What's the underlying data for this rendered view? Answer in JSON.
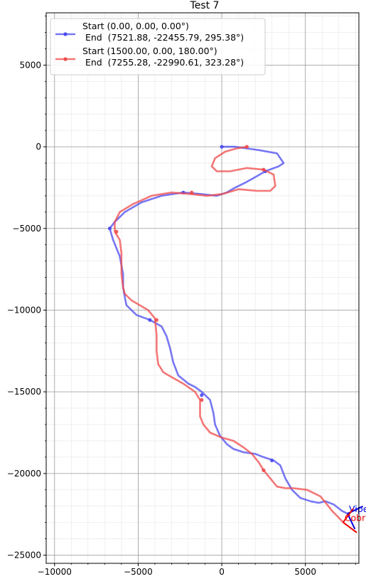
{
  "chart_data": {
    "type": "line",
    "title": "Test 7",
    "xlabel": "",
    "ylabel": "",
    "xlim": [
      -10500,
      8200
    ],
    "ylim": [
      -25500,
      8200
    ],
    "xticks": [
      -10000,
      -5000,
      0,
      5000
    ],
    "yticks": [
      5000,
      0,
      -5000,
      -10000,
      -15000,
      -20000,
      -25000
    ],
    "xtick_labels": [
      "−10000",
      "−5000",
      "0",
      "5000"
    ],
    "ytick_labels": [
      "5000",
      "0",
      "−5000",
      "−10000",
      "−15000",
      "−20000",
      "−25000"
    ],
    "grid": true,
    "legend_position": "upper-left",
    "series": [
      {
        "name": "Start (0.00, 0.00, 0.00°)",
        "name_line2": " End  (7521.88, -22455.79, 295.38°)",
        "color": "#4a4af0",
        "x": [
          0,
          800,
          2200,
          3300,
          3700,
          3400,
          2600,
          2100,
          1400,
          800,
          300,
          -300,
          -1200,
          -2300,
          -3600,
          -4800,
          -5800,
          -6400,
          -6700,
          -6500,
          -6100,
          -5900,
          -5900,
          -5800,
          -5700,
          -5100,
          -4300,
          -3600,
          -3300,
          -3100,
          -2900,
          -2600,
          -2000,
          -1600,
          -1200,
          -1000,
          -700,
          -500,
          -400,
          -100,
          300,
          700,
          1300,
          2000,
          2500,
          2800,
          3100,
          3500,
          3800,
          4200,
          4700,
          5300,
          5800,
          6200,
          6700,
          7200,
          7521
        ],
        "y": [
          0,
          0,
          -200,
          -400,
          -1000,
          -1200,
          -1500,
          -1800,
          -2200,
          -2500,
          -2800,
          -3000,
          -2900,
          -2800,
          -3000,
          -3400,
          -4000,
          -4600,
          -5000,
          -5700,
          -6700,
          -7800,
          -8600,
          -9200,
          -9700,
          -10300,
          -10600,
          -11000,
          -11600,
          -12300,
          -13200,
          -14000,
          -14500,
          -14700,
          -15000,
          -15200,
          -15500,
          -16300,
          -17000,
          -17700,
          -18200,
          -18500,
          -18700,
          -18800,
          -19000,
          -19100,
          -19200,
          -19500,
          -20300,
          -21000,
          -21500,
          -21700,
          -21800,
          -21700,
          -21900,
          -22300,
          -22455
        ],
        "markers_x": [
          0,
          2600,
          -2300,
          -6700,
          -4300,
          -1200,
          3000
        ],
        "markers_y": [
          0,
          -1500,
          -2800,
          -5000,
          -10600,
          -15200,
          -19200
        ]
      },
      {
        "name": "Start (1500.00, 0.00, 180.00°)",
        "name_line2": " End  (7255.28, -22990.61, 323.28°)",
        "color": "#f04a4a",
        "x": [
          1500,
          900,
          200,
          -400,
          -600,
          -300,
          500,
          1500,
          2500,
          3100,
          3200,
          2900,
          2100,
          1000,
          0,
          -900,
          -1800,
          -3000,
          -4200,
          -5300,
          -6100,
          -6400,
          -6400,
          -6100,
          -6000,
          -6000,
          -5900,
          -5800,
          -5400,
          -4900,
          -4400,
          -4000,
          -3900,
          -3900,
          -3800,
          -3500,
          -3000,
          -2300,
          -1600,
          -1300,
          -1300,
          -1100,
          -700,
          0,
          700,
          1300,
          1800,
          2200,
          2500,
          2900,
          3300,
          3800,
          4300,
          5100,
          5900,
          6300,
          6600,
          6900,
          7255
        ],
        "y": [
          0,
          -100,
          -300,
          -700,
          -1200,
          -1500,
          -1500,
          -1300,
          -1400,
          -1700,
          -2400,
          -2700,
          -2700,
          -2600,
          -2900,
          -3000,
          -2900,
          -2800,
          -3000,
          -3500,
          -4000,
          -4600,
          -5200,
          -5700,
          -6500,
          -7800,
          -8600,
          -9000,
          -9400,
          -9700,
          -10000,
          -10500,
          -11500,
          -12500,
          -13300,
          -13800,
          -14100,
          -14500,
          -15000,
          -15500,
          -16500,
          -17000,
          -17500,
          -17800,
          -18000,
          -18400,
          -18800,
          -19300,
          -19800,
          -20300,
          -20800,
          -20900,
          -20900,
          -21000,
          -21400,
          -21900,
          -22300,
          -22600,
          -22990
        ],
        "markers_x": [
          1500,
          2500,
          -1800,
          -6300,
          -3900,
          -1200,
          2500
        ],
        "markers_y": [
          0,
          -1400,
          -2800,
          -5200,
          -10600,
          -15500,
          -19800
        ]
      }
    ],
    "annotations": [
      {
        "text": "Viper",
        "x": 7521.88,
        "y": -22455.79,
        "heading_deg": 295.38,
        "color": "#0000dd"
      },
      {
        "text": "Cobra",
        "x": 7255.28,
        "y": -22990.61,
        "heading_deg": 323.28,
        "color": "#ee0000"
      }
    ]
  }
}
